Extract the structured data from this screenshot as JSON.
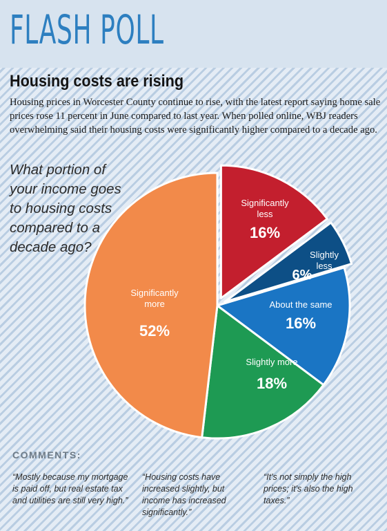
{
  "header": {
    "title": "FLASH POLL"
  },
  "headline": "Housing costs are rising",
  "deck": "Housing prices in Worcester County continue to rise, with the latest report saying home sale prices rose 11 percent in June compared to last year. When polled online, WBJ readers overwhelming said their housing costs were significantly higher compared to a decade ago.",
  "question": "What portion of your income goes to housing costs compared to a decade ago?",
  "chart_data": {
    "type": "pie",
    "title": "",
    "slices": [
      {
        "label_lines": [
          "Significantly",
          "less"
        ],
        "pct_text": "16%",
        "value": 16,
        "color": "#c31f2e",
        "exploded": true
      },
      {
        "label_lines": [
          "Slightly",
          "less"
        ],
        "pct_text": "6%",
        "value": 6,
        "color": "#0d4f86",
        "exploded": true
      },
      {
        "label_lines": [
          "About the same"
        ],
        "pct_text": "16%",
        "value": 16,
        "color": "#1a75c4",
        "exploded": false
      },
      {
        "label_lines": [
          "Slightly more"
        ],
        "pct_text": "18%",
        "value": 18,
        "color": "#1e9a53",
        "exploded": false
      },
      {
        "label_lines": [
          "Significantly",
          "more"
        ],
        "pct_text": "52%",
        "value": 52,
        "color": "#f28a4a",
        "exploded": false
      }
    ]
  },
  "comments": {
    "heading": "COMMENTS:",
    "items": [
      "“Mostly because my mortgage is paid off, but real estate tax and utilities are still very high.”",
      "“Housing costs have increased slightly, but income has increased significantly.”",
      "“It's not simply the high prices; it's also the high taxes.”"
    ]
  }
}
